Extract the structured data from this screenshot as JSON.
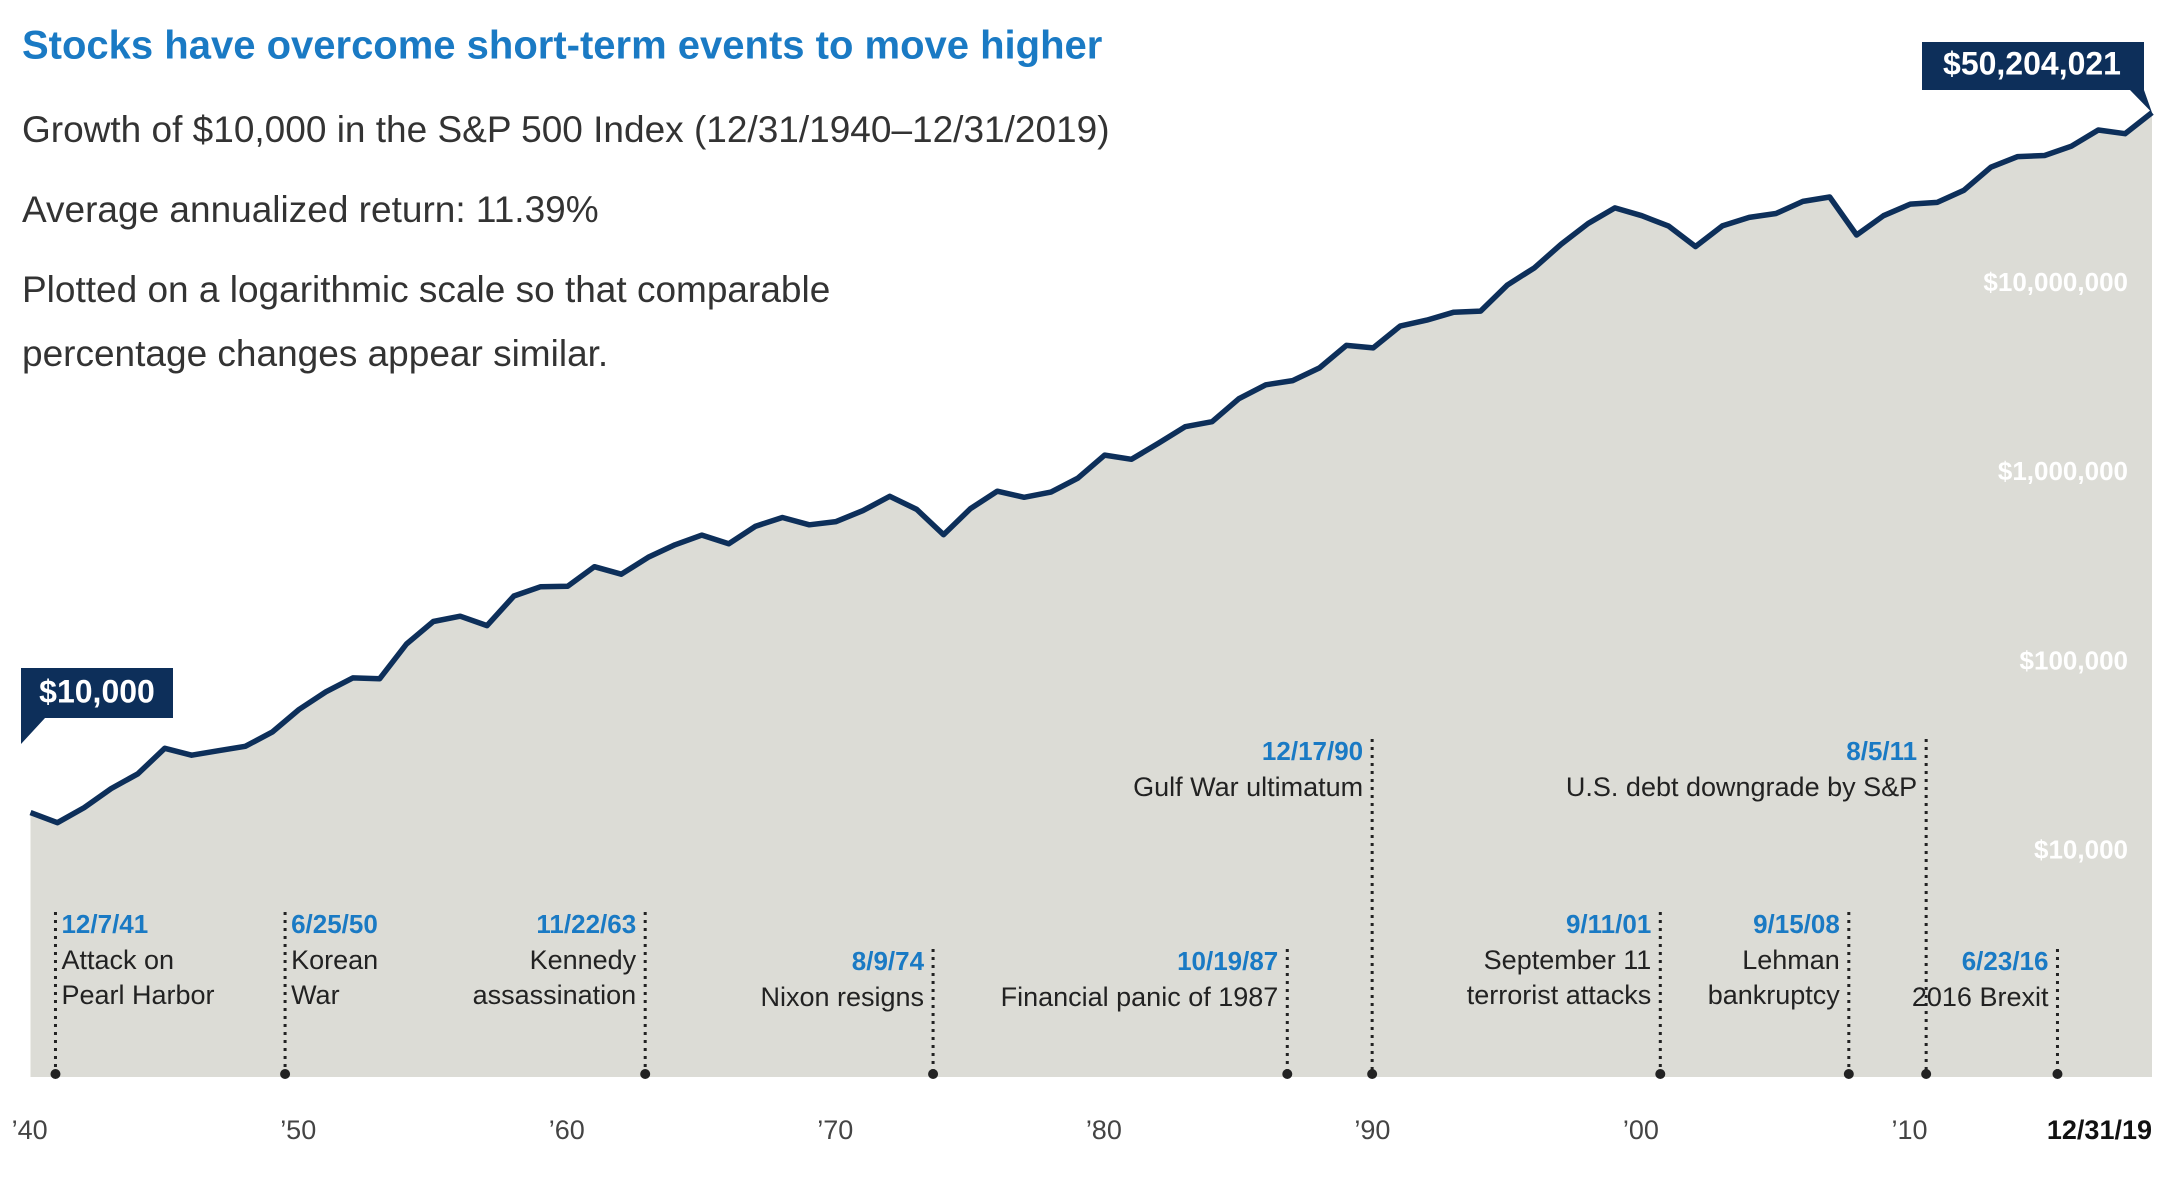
{
  "chart_data": {
    "type": "area",
    "title": "Stocks have overcome short-term events to move higher",
    "subtitle": [
      "Growth of $10,000 in the S&P 500 Index (12/31/1940–12/31/2019)",
      "Average annualized return: 11.39%",
      "Plotted on a logarithmic scale so that comparable",
      "percentage changes appear similar."
    ],
    "log_scale": true,
    "color": "#0d2f5a",
    "fill": "#dcdcd6",
    "x": [
      1941,
      1942,
      1943,
      1944,
      1945,
      1946,
      1947,
      1948,
      1949,
      1950,
      1951,
      1952,
      1953,
      1954,
      1955,
      1956,
      1957,
      1958,
      1959,
      1960,
      1961,
      1962,
      1963,
      1964,
      1965,
      1966,
      1967,
      1968,
      1969,
      1970,
      1971,
      1972,
      1973,
      1974,
      1975,
      1976,
      1977,
      1978,
      1979,
      1980,
      1981,
      1982,
      1983,
      1984,
      1985,
      1986,
      1987,
      1988,
      1989,
      1990,
      1991,
      1992,
      1993,
      1994,
      1995,
      1996,
      1997,
      1998,
      1999,
      2000,
      2001,
      2002,
      2003,
      2004,
      2005,
      2006,
      2007,
      2008,
      2009,
      2010,
      2011,
      2012,
      2013,
      2014,
      2015,
      2016,
      2017,
      2018,
      2019,
      2020
    ],
    "values": [
      10000,
      8840,
      10630,
      13390,
      16040,
      21880,
      20110,
      21250,
      22420,
      26640,
      35080,
      43500,
      51510,
      50990,
      77810,
      102400,
      109200,
      97400,
      139700,
      156400,
      157200,
      199500,
      182100,
      223600,
      260500,
      293100,
      263500,
      326700,
      363000,
      332100,
      345400,
      394800,
      469800,
      400700,
      294500,
      404100,
      500300,
      464300,
      494900,
      586000,
      775800,
      737800,
      895700,
      1097000,
      1166000,
      1542000,
      1827000,
      1922000,
      2245000,
      2952000,
      2861000,
      3733000,
      4017000,
      4423000,
      4480000,
      6165000,
      7583000,
      10115000,
      13008000,
      15740000,
      14308000,
      12605000,
      9820000,
      12638000,
      14016000,
      14703000,
      17026000,
      17962000,
      11316000,
      14315000,
      16476000,
      16822000,
      19514000,
      25836000,
      29376000,
      29787000,
      33362000,
      40635000,
      38847000,
      50204021
    ],
    "value_labels": [
      "$10,000",
      null,
      null,
      null,
      null,
      null,
      null,
      null,
      null,
      null,
      null,
      null,
      null,
      null,
      null,
      null,
      null,
      null,
      null,
      null,
      null,
      null,
      null,
      null,
      null,
      null,
      null,
      null,
      null,
      null,
      null,
      null,
      null,
      null,
      null,
      null,
      null,
      null,
      null,
      null,
      null,
      null,
      null,
      null,
      null,
      null,
      null,
      null,
      null,
      null,
      null,
      null,
      null,
      null,
      null,
      null,
      null,
      null,
      null,
      null,
      null,
      null,
      null,
      null,
      null,
      null,
      null,
      null,
      null,
      null,
      null,
      null,
      null,
      null,
      null,
      null,
      null,
      null,
      null,
      "$50,204,021"
    ],
    "xlim": [
      1941,
      2020
    ],
    "xticks": [
      {
        "value": 1940,
        "label": "’40"
      },
      {
        "value": 1950,
        "label": "’50"
      },
      {
        "value": 1960,
        "label": "’60"
      },
      {
        "value": 1970,
        "label": "’70"
      },
      {
        "value": 1980,
        "label": "’80"
      },
      {
        "value": 1990,
        "label": "’90"
      },
      {
        "value": 2000,
        "label": "’00"
      },
      {
        "value": 2010,
        "label": "’10"
      },
      {
        "value": 2020,
        "label": "12/31/19"
      }
    ],
    "ylim": [
      400,
      100000000
    ],
    "yticks": [
      {
        "value": 10000,
        "label": "$10,000"
      },
      {
        "value": 100000,
        "label": "$100,000"
      },
      {
        "value": 1000000,
        "label": "$1,000,000"
      },
      {
        "value": 10000000,
        "label": "$10,000,000"
      }
    ],
    "events": [
      {
        "date": "12/7/41",
        "label": [
          "Attack on",
          "Pearl Harbor"
        ],
        "x": 1941.93
      },
      {
        "date": "6/25/50",
        "label": [
          "Korean",
          "War"
        ],
        "x": 1950.48
      },
      {
        "date": "11/22/63",
        "label": [
          "Kennedy",
          "assassination"
        ],
        "x": 1963.89
      },
      {
        "date": "8/9/74",
        "label": [
          "Nixon resigns"
        ],
        "x": 1974.61
      },
      {
        "date": "10/19/87",
        "label": [
          "Financial panic of 1987"
        ],
        "x": 1987.8
      },
      {
        "date": "12/17/90",
        "label": [
          "Gulf War ultimatum"
        ],
        "x": 1990.96
      },
      {
        "date": "9/11/01",
        "label": [
          "September 11",
          "terrorist attacks"
        ],
        "x": 2001.69
      },
      {
        "date": "9/15/08",
        "label": [
          "Lehman",
          "bankruptcy"
        ],
        "x": 2008.71
      },
      {
        "date": "8/5/11",
        "label": [
          "U.S. debt downgrade by S&P"
        ],
        "x": 2011.59
      },
      {
        "date": "6/23/16",
        "label": [
          "2016 Brexit"
        ],
        "x": 2016.48
      }
    ]
  }
}
